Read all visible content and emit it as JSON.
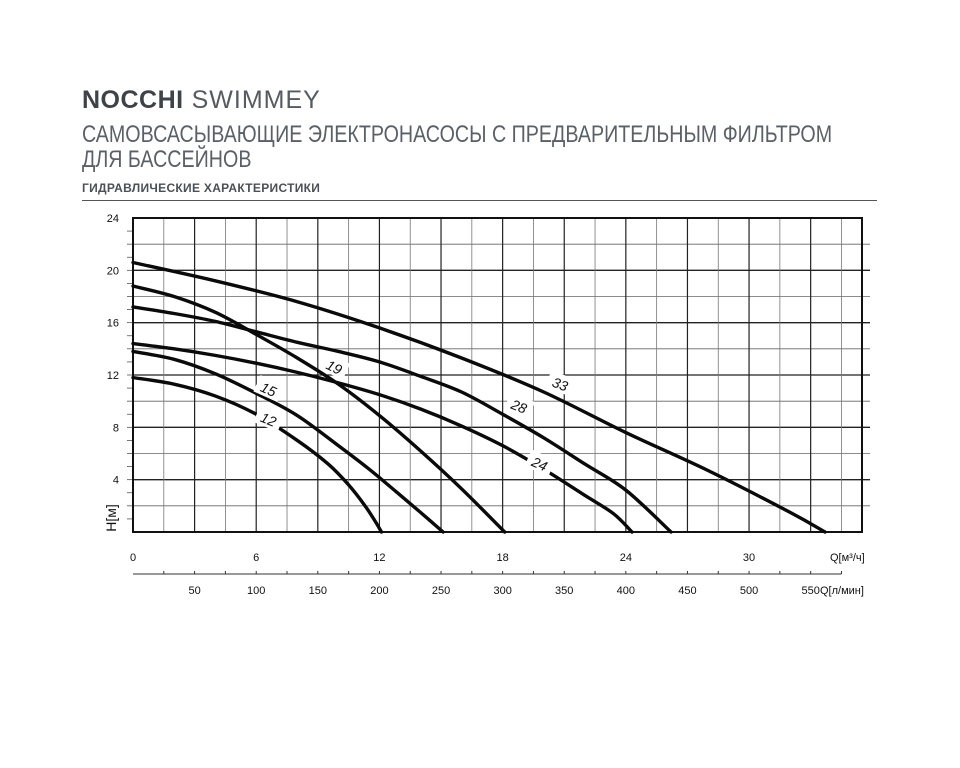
{
  "header": {
    "brand_bold": "NOCCHI",
    "brand_light": "SWIMMEY",
    "subtitle_line1": "САМОВСАСЫВАЮЩИЕ ЭЛЕКТРОНАСОСЫ С ПРЕДВАРИТЕЛЬНЫМ ФИЛЬТРОМ",
    "subtitle_line2": "ДЛЯ БАССЕЙНОВ",
    "section_title": "ГИДРАВЛИЧЕСКИЕ ХАРАКТЕРИСТИКИ"
  },
  "chart_data": {
    "type": "line",
    "title": "",
    "ylabel": "H[м]",
    "xlabel": "Q[м³/ч]",
    "xlabel_secondary": "Q[л/мин]",
    "xlim": [
      0,
      35.5
    ],
    "ylim": [
      0,
      24
    ],
    "grid": true,
    "y_ticks": [
      4,
      8,
      12,
      16,
      20,
      24
    ],
    "x_ticks": [
      {
        "value": 0,
        "label": "0"
      },
      {
        "value": 6,
        "label": "6"
      },
      {
        "value": 12,
        "label": "12"
      },
      {
        "value": 18,
        "label": "18"
      },
      {
        "value": 24,
        "label": "24"
      },
      {
        "value": 30,
        "label": "30"
      }
    ],
    "x2_ticks": [
      {
        "value": 50,
        "label": "50"
      },
      {
        "value": 100,
        "label": "100"
      },
      {
        "value": 150,
        "label": "150"
      },
      {
        "value": 200,
        "label": "200"
      },
      {
        "value": 250,
        "label": "250"
      },
      {
        "value": 300,
        "label": "300"
      },
      {
        "value": 350,
        "label": "350"
      },
      {
        "value": 400,
        "label": "400"
      },
      {
        "value": 450,
        "label": "450"
      },
      {
        "value": 500,
        "label": "500"
      },
      {
        "value": 550,
        "label": "550"
      }
    ],
    "series": [
      {
        "name": "12",
        "label_at": [
          6.6,
          8.6
        ],
        "label_angle": 22,
        "x": [
          0,
          2,
          4,
          6,
          8,
          9.5,
          10.5,
          11.3,
          11.8,
          12.1
        ],
        "y": [
          11.8,
          11.3,
          10.4,
          9.0,
          7.0,
          5.2,
          3.6,
          2.0,
          0.8,
          0.0
        ]
      },
      {
        "name": "15",
        "label_at": [
          6.6,
          10.9
        ],
        "label_angle": 24,
        "x": [
          0,
          2,
          4,
          6,
          8,
          10,
          11.5,
          12.8,
          14,
          15.1
        ],
        "y": [
          13.8,
          13.2,
          12.1,
          10.6,
          8.9,
          6.6,
          4.8,
          3.1,
          1.5,
          0.0
        ]
      },
      {
        "name": "19",
        "label_at": [
          9.8,
          12.6
        ],
        "label_angle": 26,
        "x": [
          0,
          2,
          4,
          6,
          8,
          10,
          12,
          14,
          16,
          18.1
        ],
        "y": [
          18.8,
          18.0,
          16.8,
          15.1,
          13.3,
          11.3,
          8.9,
          6.2,
          3.3,
          0.0
        ]
      },
      {
        "name": "24",
        "label_at": [
          19.8,
          5.2
        ],
        "label_angle": 24,
        "x": [
          0,
          2,
          4,
          6,
          8,
          10,
          12,
          14,
          16,
          18,
          20,
          22,
          23.4,
          24.3
        ],
        "y": [
          14.4,
          14.0,
          13.5,
          12.9,
          12.2,
          11.4,
          10.5,
          9.4,
          8.1,
          6.6,
          4.8,
          2.8,
          1.4,
          0.0
        ]
      },
      {
        "name": "28",
        "label_at": [
          18.8,
          9.6
        ],
        "label_angle": 22,
        "x": [
          0,
          2,
          4,
          6,
          8,
          10,
          12,
          14,
          16,
          18,
          20,
          22,
          24,
          26.2
        ],
        "y": [
          17.2,
          16.7,
          16.1,
          15.3,
          14.5,
          13.8,
          13.0,
          11.9,
          10.7,
          9.0,
          7.2,
          5.2,
          3.2,
          0.0
        ]
      },
      {
        "name": "33",
        "label_at": [
          20.8,
          11.3
        ],
        "label_angle": 20,
        "x": [
          0,
          4,
          8,
          12,
          16,
          20,
          24,
          28,
          32,
          33.7
        ],
        "y": [
          20.6,
          19.2,
          17.6,
          15.6,
          13.3,
          10.7,
          7.6,
          4.7,
          1.5,
          0.0
        ]
      }
    ]
  }
}
